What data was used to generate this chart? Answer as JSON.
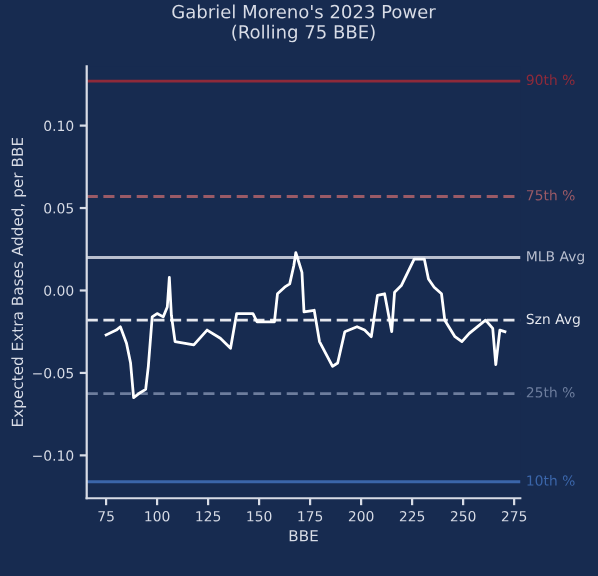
{
  "chart_data": {
    "type": "line",
    "title": "Gabriel Moreno's 2023 Power\n(Rolling 75 BBE)",
    "xlabel": "BBE",
    "ylabel": "Expected Extra Bases Added, per BBE",
    "series": [
      {
        "color": "#ffffff",
        "x": [
          75,
          80,
          82,
          85,
          87,
          88.5,
          91.7,
          94.4,
          95.7,
          97.6,
          100,
          103,
          105,
          106,
          107,
          108.8,
          118,
          124.5,
          131,
          136,
          139,
          147,
          149,
          157.5,
          159,
          162.5,
          165,
          167,
          168,
          170,
          171,
          172,
          177,
          179.6,
          186,
          188.5,
          192,
          198,
          201.7,
          205,
          208,
          211.5,
          215,
          216.4,
          219.7,
          226,
          231,
          233,
          235.8,
          239.4,
          241,
          246,
          249.4,
          253,
          261,
          264.5,
          266,
          268,
          270.5
        ],
        "values": [
          -0.027,
          -0.024,
          -0.022,
          -0.032,
          -0.044,
          -0.065,
          -0.062,
          -0.06,
          -0.046,
          -0.016,
          -0.014,
          -0.016,
          -0.01,
          0.008,
          -0.015,
          -0.031,
          -0.033,
          -0.024,
          -0.029,
          -0.035,
          -0.014,
          -0.014,
          -0.019,
          -0.019,
          -0.002,
          0.002,
          0.004,
          0.015,
          0.023,
          0.015,
          0.011,
          -0.013,
          -0.012,
          -0.031,
          -0.046,
          -0.044,
          -0.025,
          -0.022,
          -0.024,
          -0.028,
          -0.003,
          -0.002,
          -0.025,
          -0.001,
          0.003,
          0.019,
          0.019,
          0.007,
          0.002,
          -0.002,
          -0.018,
          -0.028,
          -0.031,
          -0.026,
          -0.018,
          -0.023,
          -0.045,
          -0.024,
          -0.025
        ]
      }
    ],
    "xlim": [
      65.5,
      278
    ],
    "ylim": [
      -0.126,
      0.136
    ],
    "xticks": [
      75,
      100,
      125,
      150,
      175,
      200,
      225,
      250,
      275
    ],
    "yticks": [
      {
        "value": -0.1,
        "label": "−0.10"
      },
      {
        "value": -0.05,
        "label": "−0.05"
      },
      {
        "value": 0,
        "label": "0.00"
      },
      {
        "value": 0.05,
        "label": "0.05"
      },
      {
        "value": 0.1,
        "label": "0.10"
      }
    ],
    "ref_lines": [
      {
        "axis": "y",
        "value": 0.127,
        "label": "90th %",
        "color": "#8e2a3a",
        "line_style": "solid"
      },
      {
        "axis": "y",
        "value": 0.057,
        "label": "75th %",
        "color": "#9a5a66",
        "line_style": "dashed"
      },
      {
        "axis": "y",
        "value": 0.02,
        "label": "MLB Avg",
        "color": "#b9bfcf",
        "line_style": "solid"
      },
      {
        "axis": "y",
        "value": -0.018,
        "label": "Szn Avg",
        "color": "#e6e8ee",
        "line_style": "dashed"
      },
      {
        "axis": "y",
        "value": -0.0625,
        "label": "25th %",
        "color": "#6d7d9d",
        "line_style": "dashed"
      },
      {
        "axis": "y",
        "value": -0.116,
        "label": "10th %",
        "color": "#3b66aa",
        "line_style": "solid"
      }
    ],
    "grid": false,
    "legend": false,
    "marker": "none",
    "line_style": "solid"
  }
}
